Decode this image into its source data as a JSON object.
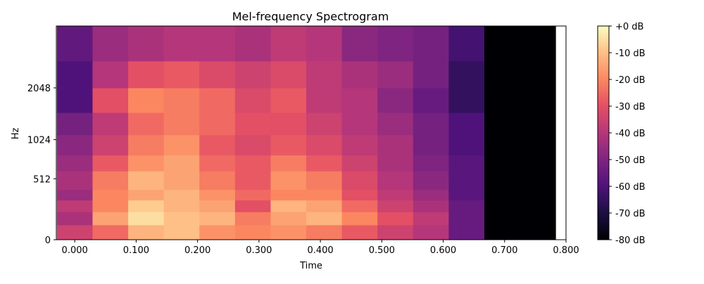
{
  "chart_data": {
    "type": "heatmap",
    "title": "Mel-frequency Spectrogram",
    "xlabel": "Time",
    "ylabel": "Hz",
    "y_scale": "mel",
    "x_range": [
      -0.03,
      0.8
    ],
    "y_range_hz": [
      0,
      4096
    ],
    "x_ticks": [
      0.0,
      0.1,
      0.2,
      0.3,
      0.4,
      0.5,
      0.6,
      0.7,
      0.8
    ],
    "x_tick_labels": [
      "0.000",
      "0.100",
      "0.200",
      "0.300",
      "0.400",
      "0.500",
      "0.600",
      "0.700",
      "0.800"
    ],
    "y_ticks_hz": [
      0,
      512,
      1024,
      2048
    ],
    "y_tick_labels": [
      "0",
      "512",
      "1024",
      "2048"
    ],
    "colormap": "magma",
    "colorbar": {
      "range_db": [
        -80,
        0
      ],
      "ticks": [
        0,
        -10,
        -20,
        -30,
        -40,
        -50,
        -60,
        -70,
        -80
      ],
      "tick_labels": [
        "+0 dB",
        "-10 dB",
        "-20 dB",
        "-30 dB",
        "-40 dB",
        "-50 dB",
        "-60 dB",
        "-70 dB",
        "-80 dB"
      ]
    },
    "frames": {
      "centers_s": [
        0.0,
        0.058,
        0.116,
        0.174,
        0.232,
        0.29,
        0.348,
        0.406,
        0.464,
        0.522,
        0.58,
        0.638,
        0.696,
        0.754
      ],
      "frame_width_s": 0.058
    },
    "band_edges_hz": [
      0,
      100,
      200,
      300,
      400,
      600,
      800,
      1100,
      1500,
      2048,
      2800,
      4096
    ],
    "values_db": [
      [
        -35,
        -25,
        -12,
        -10,
        -18,
        -20,
        -18,
        -22,
        -28,
        -35,
        -40,
        -55,
        -80,
        -80
      ],
      [
        -42,
        -15,
        -5,
        -10,
        -12,
        -22,
        -15,
        -12,
        -20,
        -30,
        -38,
        -55,
        -80,
        -80
      ],
      [
        -38,
        -20,
        -8,
        -12,
        -15,
        -30,
        -12,
        -15,
        -25,
        -35,
        -42,
        -55,
        -80,
        -80
      ],
      [
        -45,
        -20,
        -15,
        -12,
        -18,
        -25,
        -20,
        -20,
        -30,
        -38,
        -45,
        -58,
        -80,
        -80
      ],
      [
        -42,
        -22,
        -12,
        -15,
        -22,
        -28,
        -18,
        -22,
        -32,
        -40,
        -48,
        -58,
        -80,
        -80
      ],
      [
        -45,
        -28,
        -18,
        -15,
        -25,
        -28,
        -22,
        -28,
        -35,
        -42,
        -50,
        -58,
        -80,
        -80
      ],
      [
        -48,
        -35,
        -22,
        -18,
        -28,
        -32,
        -28,
        -32,
        -38,
        -42,
        -52,
        -60,
        -80,
        -80
      ],
      [
        -52,
        -38,
        -25,
        -22,
        -25,
        -30,
        -30,
        -35,
        -40,
        -45,
        -52,
        -60,
        -80,
        -80
      ],
      [
        -60,
        -30,
        -20,
        -22,
        -25,
        -32,
        -28,
        -38,
        -40,
        -48,
        -55,
        -65,
        -80,
        -80
      ],
      [
        -60,
        -40,
        -30,
        -28,
        -32,
        -35,
        -32,
        -38,
        -42,
        -45,
        -52,
        -65,
        -80,
        -80
      ],
      [
        -56,
        -45,
        -42,
        -40,
        -40,
        -42,
        -38,
        -40,
        -48,
        -50,
        -52,
        -62,
        -80,
        -80
      ]
    ]
  }
}
